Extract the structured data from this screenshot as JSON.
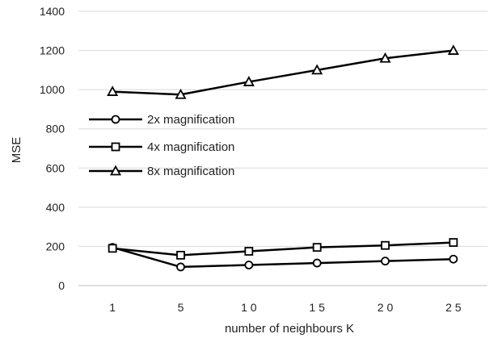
{
  "chart_data": {
    "type": "line",
    "title": "",
    "xlabel": "number of neighbours K",
    "ylabel": "MSE",
    "categories": [
      "1",
      "5",
      "10",
      "15",
      "20",
      "25"
    ],
    "x_tick_labels": [
      "1",
      "5",
      "1 0",
      "1 5",
      "2 0",
      "2 5"
    ],
    "ylim": [
      0,
      1400
    ],
    "yticks": [
      0,
      200,
      400,
      600,
      800,
      1000,
      1200,
      1400
    ],
    "grid": "horizontal",
    "legend": "inside-left",
    "line_color": "#000000",
    "series": [
      {
        "name": "2x magnification",
        "marker": "circle",
        "values": [
          195,
          95,
          105,
          115,
          125,
          135
        ]
      },
      {
        "name": "4x magnification",
        "marker": "square",
        "values": [
          190,
          155,
          175,
          195,
          205,
          220
        ]
      },
      {
        "name": "8x magnification",
        "marker": "triangle",
        "values": [
          990,
          975,
          1040,
          1100,
          1160,
          1200
        ]
      }
    ]
  }
}
